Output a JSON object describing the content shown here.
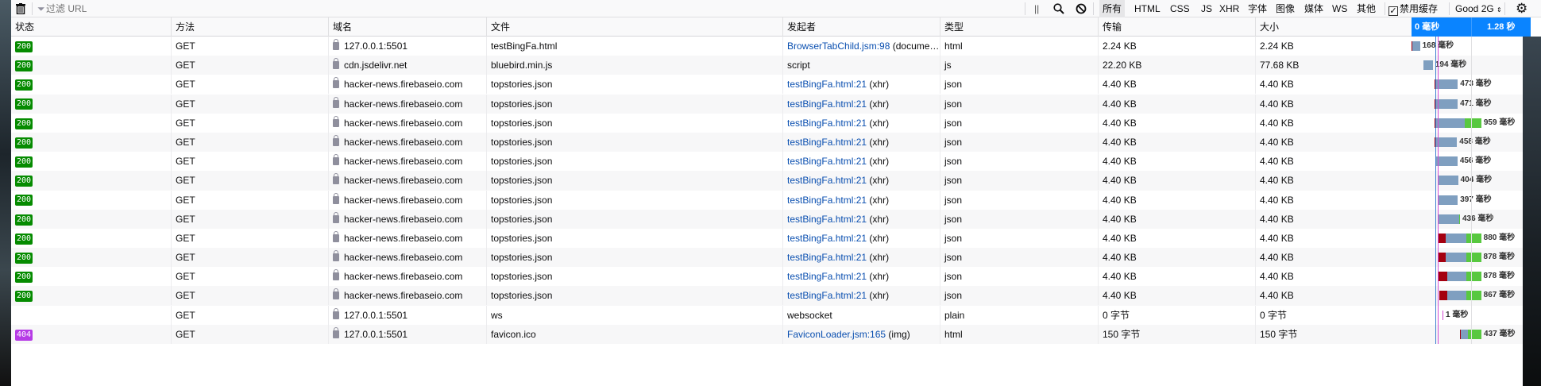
{
  "toolbar": {
    "filter_placeholder": "过滤 URL",
    "filters": [
      "所有",
      "HTML",
      "CSS",
      "JS",
      "XHR",
      "字体",
      "图像",
      "媒体",
      "WS",
      "其他"
    ],
    "active_filter": "所有",
    "disable_cache_label": "禁用缓存",
    "disable_cache_checked": true,
    "throttle": "Good 2G"
  },
  "columns": [
    "状态",
    "方法",
    "域名",
    "文件",
    "发起者",
    "类型",
    "传输",
    "大小"
  ],
  "waterfall_header": [
    "0 毫秒",
    "1.28 秒"
  ],
  "colors": {
    "accent": "#0a84ff",
    "status_200": "#058b00",
    "status_404": "#b63be6",
    "blocked": "#a4000f",
    "waiting": "#7f9fc0",
    "receiving": "#58c840",
    "dcl_line": "#3f7fcf",
    "load_line": "#d44bd4"
  },
  "requests": [
    {
      "status": "200",
      "method": "GET",
      "domain": "127.0.0.1:5501",
      "file": "testBingFa.html",
      "initiator_link": "BrowserTabChild.jsm:98",
      "initiator_extra": " (docume…",
      "type": "html",
      "transferred": "2.24 KB",
      "size": "2.24 KB",
      "time": "168 毫秒",
      "start_ms": 0,
      "blocked_ms": 10,
      "wait_ms": 158,
      "receive_ms": 0
    },
    {
      "status": "200",
      "method": "GET",
      "domain": "cdn.jsdelivr.net",
      "file": "bluebird.min.js",
      "initiator_link": "",
      "initiator_extra": "script",
      "type": "js",
      "transferred": "22.20 KB",
      "size": "77.68 KB",
      "time": "194 毫秒",
      "start_ms": 246,
      "blocked_ms": 0,
      "wait_ms": 194,
      "receive_ms": 0
    },
    {
      "status": "200",
      "method": "GET",
      "domain": "hacker-news.firebaseio.com",
      "file": "topstories.json",
      "initiator_link": "testBingFa.html:21",
      "initiator_extra": " (xhr)",
      "type": "json",
      "transferred": "4.40 KB",
      "size": "4.40 KB",
      "time": "473 毫秒",
      "start_ms": 475,
      "blocked_ms": 10,
      "wait_ms": 463,
      "receive_ms": 0
    },
    {
      "status": "200",
      "method": "GET",
      "domain": "hacker-news.firebaseio.com",
      "file": "topstories.json",
      "initiator_link": "testBingFa.html:21",
      "initiator_extra": " (xhr)",
      "type": "json",
      "transferred": "4.40 KB",
      "size": "4.40 KB",
      "time": "471 毫秒",
      "start_ms": 475,
      "blocked_ms": 10,
      "wait_ms": 461,
      "receive_ms": 0
    },
    {
      "status": "200",
      "method": "GET",
      "domain": "hacker-news.firebaseio.com",
      "file": "topstories.json",
      "initiator_link": "testBingFa.html:21",
      "initiator_extra": " (xhr)",
      "type": "json",
      "transferred": "4.40 KB",
      "size": "4.40 KB",
      "time": "959 毫秒",
      "start_ms": 475,
      "blocked_ms": 10,
      "wait_ms": 600,
      "receive_ms": 349
    },
    {
      "status": "200",
      "method": "GET",
      "domain": "hacker-news.firebaseio.com",
      "file": "topstories.json",
      "initiator_link": "testBingFa.html:21",
      "initiator_extra": " (xhr)",
      "type": "json",
      "transferred": "4.40 KB",
      "size": "4.40 KB",
      "time": "458 毫秒",
      "start_ms": 475,
      "blocked_ms": 10,
      "wait_ms": 448,
      "receive_ms": 0
    },
    {
      "status": "200",
      "method": "GET",
      "domain": "hacker-news.firebaseio.com",
      "file": "topstories.json",
      "initiator_link": "testBingFa.html:21",
      "initiator_extra": " (xhr)",
      "type": "json",
      "transferred": "4.40 KB",
      "size": "4.40 KB",
      "time": "456 毫秒",
      "start_ms": 492,
      "blocked_ms": 0,
      "wait_ms": 456,
      "receive_ms": 0
    },
    {
      "status": "200",
      "method": "GET",
      "domain": "hacker-news.firebaseio.com",
      "file": "topstories.json",
      "initiator_link": "testBingFa.html:21",
      "initiator_extra": " (xhr)",
      "type": "json",
      "transferred": "4.40 KB",
      "size": "4.40 KB",
      "time": "404 毫秒",
      "start_ms": 557,
      "blocked_ms": 0,
      "wait_ms": 404,
      "receive_ms": 0
    },
    {
      "status": "200",
      "method": "GET",
      "domain": "hacker-news.firebaseio.com",
      "file": "topstories.json",
      "initiator_link": "testBingFa.html:21",
      "initiator_extra": " (xhr)",
      "type": "json",
      "transferred": "4.40 KB",
      "size": "4.40 KB",
      "time": "397 毫秒",
      "start_ms": 557,
      "blocked_ms": 0,
      "wait_ms": 397,
      "receive_ms": 0
    },
    {
      "status": "200",
      "method": "GET",
      "domain": "hacker-news.firebaseio.com",
      "file": "topstories.json",
      "initiator_link": "testBingFa.html:21",
      "initiator_extra": " (xhr)",
      "type": "json",
      "transferred": "4.40 KB",
      "size": "4.40 KB",
      "time": "436 毫秒",
      "start_ms": 557,
      "blocked_ms": 0,
      "wait_ms": 426,
      "receive_ms": 10
    },
    {
      "status": "200",
      "method": "GET",
      "domain": "hacker-news.firebaseio.com",
      "file": "topstories.json",
      "initiator_link": "testBingFa.html:21",
      "initiator_extra": " (xhr)",
      "type": "json",
      "transferred": "4.40 KB",
      "size": "4.40 KB",
      "time": "880 毫秒",
      "start_ms": 557,
      "blocked_ms": 150,
      "wait_ms": 420,
      "receive_ms": 310
    },
    {
      "status": "200",
      "method": "GET",
      "domain": "hacker-news.firebaseio.com",
      "file": "topstories.json",
      "initiator_link": "testBingFa.html:21",
      "initiator_extra": " (xhr)",
      "type": "json",
      "transferred": "4.40 KB",
      "size": "4.40 KB",
      "time": "878 毫秒",
      "start_ms": 557,
      "blocked_ms": 150,
      "wait_ms": 420,
      "receive_ms": 308
    },
    {
      "status": "200",
      "method": "GET",
      "domain": "hacker-news.firebaseio.com",
      "file": "topstories.json",
      "initiator_link": "testBingFa.html:21",
      "initiator_extra": " (xhr)",
      "type": "json",
      "transferred": "4.40 KB",
      "size": "4.40 KB",
      "time": "878 毫秒",
      "start_ms": 557,
      "blocked_ms": 180,
      "wait_ms": 390,
      "receive_ms": 308
    },
    {
      "status": "200",
      "method": "GET",
      "domain": "hacker-news.firebaseio.com",
      "file": "topstories.json",
      "initiator_link": "testBingFa.html:21",
      "initiator_extra": " (xhr)",
      "type": "json",
      "transferred": "4.40 KB",
      "size": "4.40 KB",
      "time": "867 毫秒",
      "start_ms": 570,
      "blocked_ms": 160,
      "wait_ms": 400,
      "receive_ms": 307
    },
    {
      "status": "",
      "method": "GET",
      "domain": "127.0.0.1:5501",
      "file": "ws",
      "initiator_link": "",
      "initiator_extra": "websocket",
      "type": "plain",
      "transferred": "0 字节",
      "size": "0 字节",
      "time": "1 毫秒",
      "start_ms": 640,
      "blocked_ms": 0,
      "wait_ms": 1,
      "receive_ms": 0
    },
    {
      "status": "404",
      "method": "GET",
      "domain": "127.0.0.1:5501",
      "file": "favicon.ico",
      "initiator_link": "FaviconLoader.jsm:165",
      "initiator_extra": " (img)",
      "type": "html",
      "transferred": "150 字节",
      "size": "150 字节",
      "time": "437 毫秒",
      "start_ms": 1000,
      "blocked_ms": 10,
      "wait_ms": 150,
      "receive_ms": 277
    }
  ]
}
